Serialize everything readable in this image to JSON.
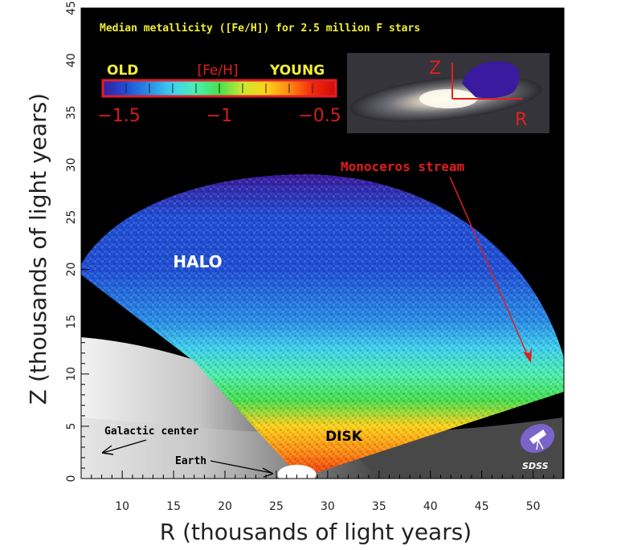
{
  "chart_data": {
    "type": "heatmap",
    "title": "Median metallicity ([Fe/H]) for 2.5 million F stars",
    "xlabel": "R (thousands of light years)",
    "ylabel": "Z (thousands of light years)",
    "xlim": [
      6,
      53
    ],
    "ylim": [
      0,
      45
    ],
    "x_ticks": [
      10,
      15,
      20,
      25,
      30,
      35,
      40,
      45,
      50
    ],
    "y_ticks": [
      0,
      5,
      10,
      15,
      20,
      25,
      30,
      35,
      40,
      45
    ],
    "colorbar": {
      "label": "[Fe/H]",
      "left_label": "OLD",
      "right_label": "YOUNG",
      "range": [
        -1.6,
        -0.4
      ],
      "ticks": [
        "−1.5",
        "−1",
        "−0.5"
      ],
      "colors": [
        "#3a1a9e",
        "#1f4fd6",
        "#2a8fe8",
        "#3fd0f0",
        "#4cf0b0",
        "#47e04f",
        "#c9e831",
        "#ffd21a",
        "#ff8a12",
        "#f22a0a",
        "#d10a0a"
      ]
    },
    "median_feh_by_height": {
      "z": [
        0,
        2.5,
        5,
        7.5,
        10,
        12.5,
        15,
        20,
        25,
        29
      ],
      "feh": [
        -0.5,
        -0.65,
        -0.8,
        -0.95,
        -1.1,
        -1.25,
        -1.35,
        -1.45,
        -1.5,
        -1.55
      ]
    },
    "annotations": [
      {
        "text": "HALO"
      },
      {
        "text": "DISK"
      },
      {
        "text": "Monoceros stream"
      },
      {
        "text": "Galactic center"
      },
      {
        "text": "Earth"
      }
    ],
    "inset": {
      "x_label": "R",
      "y_label": "Z"
    },
    "logo": "SDSS",
    "grid": false
  }
}
